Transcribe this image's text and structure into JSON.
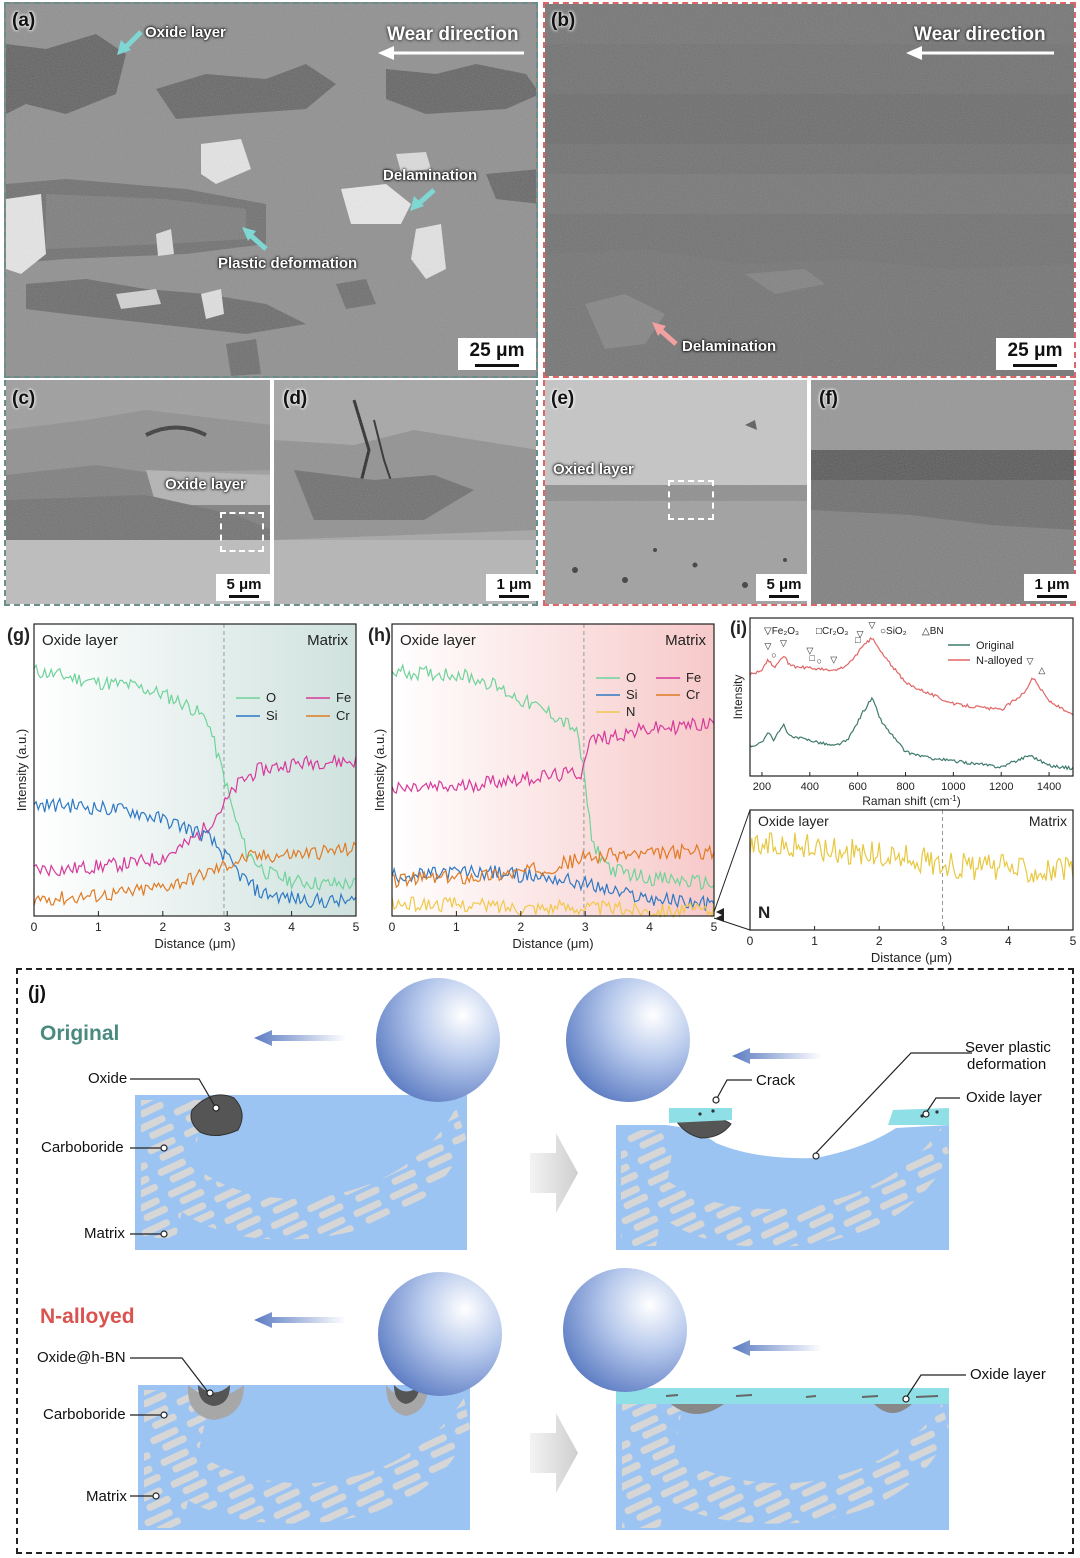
{
  "panels": {
    "a": {
      "label": "(a)",
      "wear": "Wear direction",
      "oxide": "Oxide layer",
      "delam": "Delamination",
      "plastic": "Plastic deformation",
      "scale": "25 μm"
    },
    "b": {
      "label": "(b)",
      "wear": "Wear direction",
      "delam": "Delamination",
      "scale": "25 μm"
    },
    "c": {
      "label": "(c)",
      "oxide": "Oxide layer",
      "scale": "5 μm"
    },
    "d": {
      "label": "(d)",
      "scale": "1 μm"
    },
    "e": {
      "label": "(e)",
      "oxied": "Oxied layer",
      "scale": "5 μm"
    },
    "f": {
      "label": "(f)",
      "scale": "1 μm"
    }
  },
  "chart_data": [
    {
      "panel": "(g)",
      "type": "line",
      "region_left": "Oxide layer",
      "region_right": "Matrix",
      "xlabel": "Distance (μm)",
      "ylabel": "Intensity (a.u.)",
      "xlim": [
        0,
        5
      ],
      "xticks": [
        "0",
        "1",
        "2",
        "3",
        "4",
        "5"
      ],
      "boundary": 2.95,
      "series": [
        {
          "name": "O",
          "color": "#6fd39a",
          "points": [
            [
              0,
              0.84
            ],
            [
              0.5,
              0.82
            ],
            [
              1,
              0.8
            ],
            [
              1.5,
              0.79
            ],
            [
              2,
              0.76
            ],
            [
              2.4,
              0.72
            ],
            [
              2.7,
              0.67
            ],
            [
              2.85,
              0.55
            ],
            [
              2.95,
              0.48
            ],
            [
              3.1,
              0.35
            ],
            [
              3.3,
              0.22
            ],
            [
              3.6,
              0.15
            ],
            [
              4,
              0.12
            ],
            [
              4.5,
              0.11
            ],
            [
              5,
              0.11
            ]
          ]
        },
        {
          "name": "Fe",
          "color": "#d6399b",
          "points": [
            [
              0,
              0.16
            ],
            [
              0.5,
              0.16
            ],
            [
              1,
              0.17
            ],
            [
              1.5,
              0.18
            ],
            [
              2,
              0.2
            ],
            [
              2.4,
              0.25
            ],
            [
              2.7,
              0.31
            ],
            [
              2.95,
              0.38
            ],
            [
              3.2,
              0.46
            ],
            [
              3.5,
              0.5
            ],
            [
              4,
              0.52
            ],
            [
              4.5,
              0.53
            ],
            [
              5,
              0.53
            ]
          ]
        },
        {
          "name": "Si",
          "color": "#2e78c4",
          "points": [
            [
              0,
              0.38
            ],
            [
              0.5,
              0.38
            ],
            [
              1,
              0.37
            ],
            [
              1.5,
              0.36
            ],
            [
              2,
              0.33
            ],
            [
              2.4,
              0.3
            ],
            [
              2.7,
              0.27
            ],
            [
              2.95,
              0.21
            ],
            [
              3.2,
              0.14
            ],
            [
              3.5,
              0.08
            ],
            [
              4,
              0.06
            ],
            [
              4.5,
              0.05
            ],
            [
              5,
              0.05
            ]
          ]
        },
        {
          "name": "Cr",
          "color": "#e07b24",
          "points": [
            [
              0,
              0.06
            ],
            [
              0.5,
              0.06
            ],
            [
              1,
              0.07
            ],
            [
              1.5,
              0.08
            ],
            [
              2,
              0.1
            ],
            [
              2.5,
              0.13
            ],
            [
              2.95,
              0.17
            ],
            [
              3.3,
              0.2
            ],
            [
              4,
              0.21
            ],
            [
              4.5,
              0.22
            ],
            [
              5,
              0.23
            ]
          ]
        }
      ]
    },
    {
      "panel": "(h)",
      "type": "line",
      "region_left": "Oxide layer",
      "region_right": "Matrix",
      "xlabel": "Distance (μm)",
      "ylabel": "Intensity (a.u.)",
      "xlim": [
        0,
        5
      ],
      "xticks": [
        "0",
        "1",
        "2",
        "3",
        "4",
        "5"
      ],
      "boundary": 2.98,
      "series": [
        {
          "name": "O",
          "color": "#6fd39a",
          "points": [
            [
              0,
              0.84
            ],
            [
              0.5,
              0.83
            ],
            [
              1,
              0.83
            ],
            [
              1.5,
              0.8
            ],
            [
              2,
              0.74
            ],
            [
              2.5,
              0.69
            ],
            [
              2.85,
              0.64
            ],
            [
              2.98,
              0.5
            ],
            [
              3.1,
              0.25
            ],
            [
              3.4,
              0.16
            ],
            [
              4,
              0.13
            ],
            [
              4.5,
              0.12
            ],
            [
              5,
              0.11
            ]
          ]
        },
        {
          "name": "Fe",
          "color": "#d6399b",
          "points": [
            [
              0,
              0.43
            ],
            [
              0.5,
              0.44
            ],
            [
              1,
              0.44
            ],
            [
              1.5,
              0.46
            ],
            [
              2,
              0.47
            ],
            [
              2.5,
              0.48
            ],
            [
              2.95,
              0.49
            ],
            [
              3.05,
              0.6
            ],
            [
              3.5,
              0.62
            ],
            [
              4,
              0.64
            ],
            [
              4.5,
              0.65
            ],
            [
              5,
              0.66
            ]
          ]
        },
        {
          "name": "Si",
          "color": "#2e78c4",
          "points": [
            [
              0,
              0.14
            ],
            [
              0.5,
              0.14
            ],
            [
              1,
              0.15
            ],
            [
              1.5,
              0.15
            ],
            [
              2,
              0.14
            ],
            [
              2.5,
              0.13
            ],
            [
              3,
              0.11
            ],
            [
              3.5,
              0.08
            ],
            [
              4,
              0.06
            ],
            [
              4.5,
              0.05
            ],
            [
              5,
              0.04
            ]
          ]
        },
        {
          "name": "Cr",
          "color": "#e07b24",
          "points": [
            [
              0,
              0.12
            ],
            [
              0.5,
              0.13
            ],
            [
              1,
              0.13
            ],
            [
              1.5,
              0.14
            ],
            [
              2,
              0.15
            ],
            [
              2.5,
              0.17
            ],
            [
              3,
              0.2
            ],
            [
              3.5,
              0.21
            ],
            [
              4,
              0.21
            ],
            [
              4.5,
              0.22
            ],
            [
              5,
              0.22
            ]
          ]
        },
        {
          "name": "N",
          "color": "#f1c84a",
          "points": [
            [
              0,
              0.04
            ],
            [
              1,
              0.04
            ],
            [
              2,
              0.03
            ],
            [
              3,
              0.03
            ],
            [
              4,
              0.02
            ],
            [
              5,
              0.02
            ]
          ]
        }
      ]
    },
    {
      "panel": "(i)",
      "type": "line",
      "xlabel": "Raman shift (cm⁻¹)",
      "xlabel_base": "Raman shift (cm",
      "xlabel_sup": "-1",
      "xlabel_end": ")",
      "ylabel": "Intensity",
      "xlim": [
        150,
        1500
      ],
      "xticks": [
        "200",
        "400",
        "600",
        "800",
        "1000",
        "1200",
        "1400"
      ],
      "markers": [
        "▽Fe₂O₃",
        "□Cr₂O₃",
        "○SiO₂",
        "△BN"
      ],
      "marker_colors": [
        "#2e78c4",
        "#e07b24",
        "#3aa84a",
        "#b040c8"
      ],
      "series": [
        {
          "name": "Original",
          "color": "#3f7a6e",
          "points": [
            [
              150,
              0.2
            ],
            [
              200,
              0.22
            ],
            [
              225,
              0.3
            ],
            [
              250,
              0.24
            ],
            [
              290,
              0.34
            ],
            [
              320,
              0.26
            ],
            [
              400,
              0.24
            ],
            [
              450,
              0.22
            ],
            [
              500,
              0.2
            ],
            [
              560,
              0.24
            ],
            [
              620,
              0.42
            ],
            [
              660,
              0.52
            ],
            [
              700,
              0.36
            ],
            [
              800,
              0.16
            ],
            [
              900,
              0.12
            ],
            [
              1000,
              0.1
            ],
            [
              1200,
              0.06
            ],
            [
              1320,
              0.14
            ],
            [
              1400,
              0.07
            ],
            [
              1500,
              0.05
            ]
          ]
        },
        {
          "name": "N-alloyed",
          "color": "#e06666",
          "points": [
            [
              150,
              0.68
            ],
            [
              200,
              0.7
            ],
            [
              225,
              0.78
            ],
            [
              250,
              0.72
            ],
            [
              290,
              0.8
            ],
            [
              320,
              0.73
            ],
            [
              400,
              0.72
            ],
            [
              450,
              0.71
            ],
            [
              500,
              0.7
            ],
            [
              560,
              0.74
            ],
            [
              620,
              0.86
            ],
            [
              660,
              0.92
            ],
            [
              700,
              0.82
            ],
            [
              800,
              0.62
            ],
            [
              900,
              0.55
            ],
            [
              1000,
              0.48
            ],
            [
              1200,
              0.44
            ],
            [
              1300,
              0.56
            ],
            [
              1330,
              0.66
            ],
            [
              1400,
              0.5
            ],
            [
              1500,
              0.4
            ]
          ]
        }
      ]
    },
    {
      "panel": "(i) lower",
      "type": "line",
      "region_left": "Oxide layer",
      "region_right": "Matrix",
      "xlabel": "Distance (μm)",
      "xlim": [
        0,
        5
      ],
      "xticks": [
        "0",
        "1",
        "2",
        "3",
        "4",
        "5"
      ],
      "boundary": 2.98,
      "series": [
        {
          "name": "N",
          "color": "#e8c840",
          "points": [
            [
              0,
              0.7
            ],
            [
              0.5,
              0.72
            ],
            [
              1,
              0.68
            ],
            [
              1.5,
              0.66
            ],
            [
              2,
              0.62
            ],
            [
              2.5,
              0.6
            ],
            [
              3,
              0.55
            ],
            [
              3.5,
              0.52
            ],
            [
              4,
              0.52
            ],
            [
              4.5,
              0.5
            ],
            [
              5,
              0.5
            ]
          ]
        }
      ]
    }
  ],
  "chart_text": {
    "g_label": "(g)",
    "h_label": "(h)",
    "i_label": "(i)"
  },
  "schematic": {
    "label": "(j)",
    "original": "Original",
    "nalloyed": "N-alloyed",
    "oxide": "Oxide",
    "carboboride": "Carboboride",
    "matrix": "Matrix",
    "crack": "Crack",
    "sever_line1": "Sever plastic",
    "sever_line2": "deformation",
    "oxide_layer": "Oxide layer",
    "oxide_hbn": "Oxide@h-BN",
    "original_color": "#4a8a80",
    "nalloyed_color": "#d9534f"
  }
}
